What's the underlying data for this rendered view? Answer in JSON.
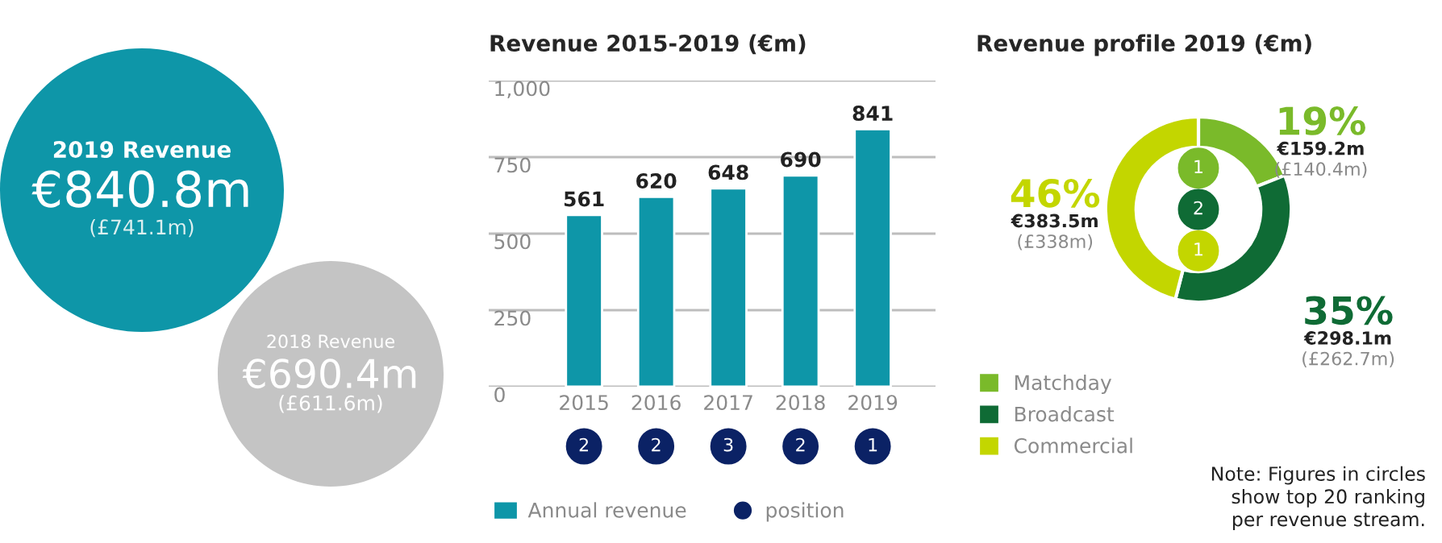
{
  "chart_data": [
    {
      "type": "other",
      "colors": [
        "#0e96a8",
        "#c4c4c4"
      ],
      "annotations": [
        "2019 Revenue",
        "€840.8m",
        "(£741.1m)",
        "2018 Revenue",
        "€690.4m",
        "(£611.6m)"
      ]
    },
    {
      "type": "bar",
      "title": "Revenue 2015-2019 (€m)",
      "categories": [
        "2015",
        "2016",
        "2017",
        "2018",
        "2019"
      ],
      "series": [
        {
          "name": "Annual revenue",
          "color": "#0e96a8",
          "values": [
            561,
            620,
            648,
            690,
            841
          ]
        }
      ],
      "ylim": [
        0,
        1000
      ],
      "yticks": [
        0,
        250,
        500,
        750,
        {
          "value": 1000,
          "label": "1,000"
        }
      ],
      "grid": "y",
      "data_labels": true,
      "legend": "bottom"
    },
    {
      "type": "other",
      "series": [
        {
          "name": "position",
          "color": "#0b2265",
          "values": [
            2,
            2,
            3,
            2,
            1
          ],
          "value_labels": [
            "2",
            "2",
            "3",
            "2",
            "1"
          ]
        }
      ],
      "legend": "bottom"
    },
    {
      "type": "donut",
      "title": "Revenue profile 2019 (€m)",
      "categories": [
        "Matchday",
        "Broadcast",
        "Commercial"
      ],
      "values": [
        19,
        35,
        46
      ],
      "colors": [
        "#7aba2a",
        "#0f6b35",
        "#c3d600"
      ],
      "value_labels": [
        "19%",
        "35%",
        "46%"
      ],
      "annotations": [
        "€159.2m",
        "(£140.4m)",
        "€298.1m",
        "(£262.7m)",
        "€383.5m",
        "(£338m)",
        "1",
        "2",
        "1",
        "Note: Figures in circles\nshow top 20 ranking\nper revenue stream."
      ],
      "legend": "bottom left"
    }
  ]
}
